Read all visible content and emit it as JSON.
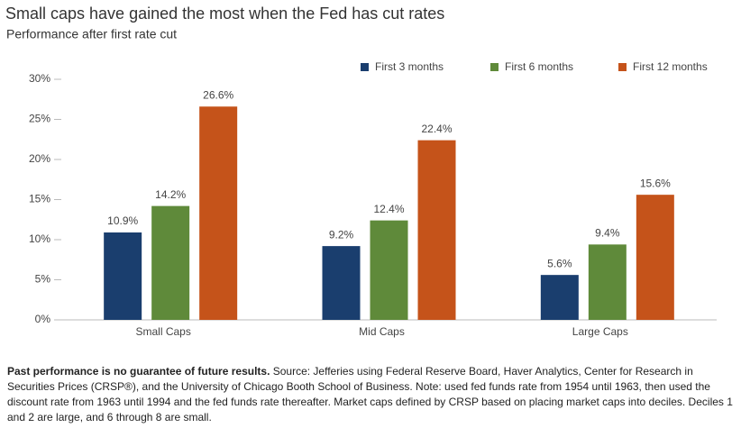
{
  "chart_data": {
    "type": "bar",
    "title": "Small caps have gained the most when the Fed has cut rates",
    "subtitle": "Performance after first rate cut",
    "categories": [
      "Small Caps",
      "Mid Caps",
      "Large Caps"
    ],
    "series": [
      {
        "name": "First 3 months",
        "color": "#1a3e6e",
        "values": [
          10.9,
          9.2,
          5.6
        ],
        "value_labels": [
          "10.9%",
          "9.2%",
          "5.6%"
        ]
      },
      {
        "name": "First 6 months",
        "color": "#5f8a3a",
        "values": [
          14.2,
          12.4,
          9.4
        ],
        "value_labels": [
          "14.2%",
          "12.4%",
          "9.4%"
        ]
      },
      {
        "name": "First 12 months",
        "color": "#c5531a",
        "values": [
          26.6,
          22.4,
          15.6
        ],
        "value_labels": [
          "26.6%",
          "22.4%",
          "15.6%"
        ]
      }
    ],
    "ylim": [
      0,
      30
    ],
    "yticks": [
      {
        "value": 0,
        "label": "0%"
      },
      {
        "value": 5,
        "label": "5%"
      },
      {
        "value": 10,
        "label": "10%"
      },
      {
        "value": 15,
        "label": "15%"
      },
      {
        "value": 20,
        "label": "20%"
      },
      {
        "value": 25,
        "label": "25%"
      },
      {
        "value": 30,
        "label": "30%"
      }
    ],
    "grid": false,
    "legend": "top-right"
  },
  "footnote": {
    "bold": "Past performance is no guarantee of future results.",
    "text": " Source: Jefferies using Federal Reserve Board, Haver Analytics, Center for Research in Securities Prices (CRSP®), and the University of Chicago Booth School of Business. Note: used fed funds rate from 1954 until 1963, then used the discount rate from 1963 until 1994 and the fed funds rate thereafter. Market caps defined by CRSP based on placing market caps into deciles. Deciles 1 and 2 are large, and 6 through 8 are small."
  }
}
